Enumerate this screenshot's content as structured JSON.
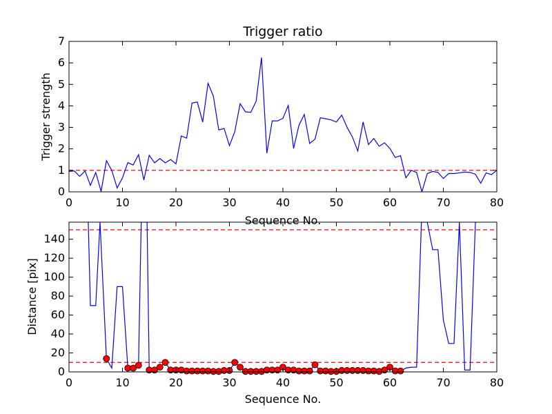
{
  "chart_data": [
    {
      "type": "line",
      "title": "Trigger ratio",
      "xlabel": "Sequence No.",
      "ylabel": "Trigger strength",
      "xlim": [
        0,
        80
      ],
      "ylim": [
        0,
        7
      ],
      "xticks": [
        "0",
        "10",
        "20",
        "30",
        "40",
        "50",
        "60",
        "70",
        "80"
      ],
      "yticks": [
        "0",
        "1",
        "2",
        "3",
        "4",
        "5",
        "6",
        "7"
      ],
      "grid": false,
      "threshold": 1,
      "colors": {
        "line": "#0000ff",
        "threshold": "#ff0000"
      },
      "series": [
        {
          "x": [
            0,
            1,
            2,
            3,
            4,
            5,
            6,
            7,
            8,
            9,
            10,
            11,
            12,
            13,
            14,
            15,
            16,
            17,
            18,
            19,
            20,
            21,
            22,
            23,
            24,
            25,
            26,
            27,
            28,
            29,
            30,
            31,
            32,
            33,
            34,
            35,
            36,
            37,
            38,
            39,
            40,
            41,
            42,
            43,
            44,
            45,
            46,
            47,
            48,
            49,
            50,
            51,
            52,
            53,
            54,
            55,
            56,
            57,
            58,
            59,
            60,
            61,
            62,
            63,
            64,
            65,
            66,
            67,
            68,
            69,
            70,
            71,
            72,
            73,
            74,
            75,
            76,
            77,
            78,
            79,
            80
          ],
          "y": [
            0.95,
            0.97,
            0.72,
            0.97,
            0.3,
            0.9,
            0.02,
            1.45,
            1.0,
            0.18,
            0.65,
            1.36,
            1.25,
            1.73,
            0.55,
            1.7,
            1.35,
            1.55,
            1.35,
            1.5,
            1.3,
            2.6,
            2.5,
            4.13,
            4.18,
            3.25,
            5.05,
            4.45,
            2.88,
            2.95,
            2.15,
            2.8,
            4.1,
            3.72,
            3.7,
            4.22,
            6.25,
            1.8,
            3.3,
            3.3,
            3.42,
            4.02,
            2.02,
            3.1,
            3.6,
            2.25,
            2.45,
            3.45,
            3.4,
            3.35,
            3.25,
            3.57,
            3.0,
            2.55,
            1.9,
            3.25,
            2.2,
            2.48,
            2.12,
            2.28,
            2.02,
            1.6,
            1.68,
            0.65,
            1.0,
            0.9,
            0.0,
            0.85,
            0.95,
            0.9,
            0.62,
            0.85,
            0.85,
            0.88,
            0.92,
            0.9,
            0.82,
            0.4,
            0.88,
            0.8,
            1.0
          ]
        }
      ]
    },
    {
      "type": "line",
      "title": "",
      "xlabel": "Sequence No.",
      "ylabel": "Distance [pix]",
      "xlim": [
        0,
        80
      ],
      "ylim": [
        0,
        158
      ],
      "xticks": [
        "0",
        "10",
        "20",
        "30",
        "40",
        "50",
        "60",
        "70",
        "80"
      ],
      "yticks": [
        "0",
        "20",
        "40",
        "60",
        "80",
        "100",
        "120",
        "140"
      ],
      "grid": false,
      "thresholds": [
        10,
        150
      ],
      "colors": {
        "line": "#0000ff",
        "marker": "#ff0000",
        "threshold": "#ff0000"
      },
      "series": [
        {
          "x": [
            3.6,
            4,
            5,
            5.8,
            7,
            8,
            9,
            10,
            11,
            12,
            13,
            13.5,
            14.6,
            15,
            16,
            17,
            18,
            19,
            20,
            21,
            22,
            23,
            24,
            25,
            26,
            27,
            28,
            29,
            30,
            31,
            32,
            33,
            34,
            35,
            36,
            37,
            38,
            39,
            40,
            41,
            42,
            43,
            44,
            45,
            46,
            47,
            48,
            49,
            50,
            51,
            52,
            53,
            54,
            55,
            56,
            57,
            58,
            59,
            60,
            61,
            62,
            63,
            64,
            65,
            65.9,
            67,
            68,
            69,
            70,
            71,
            72,
            73,
            74,
            75,
            76,
            76.4
          ],
          "y": [
            158,
            70,
            70,
            158,
            14,
            4,
            90,
            90,
            4,
            4,
            7,
            158,
            158,
            2,
            2,
            5,
            10,
            2,
            2,
            2,
            1,
            1,
            1,
            1,
            1,
            0.5,
            0.5,
            1.5,
            1.5,
            10,
            5,
            0.5,
            0.5,
            0.5,
            0.5,
            2,
            2,
            2,
            5,
            2,
            2,
            1,
            1,
            1,
            7.5,
            1,
            1,
            0.5,
            0.5,
            1.5,
            1.5,
            1.5,
            1.5,
            1.5,
            1,
            1,
            0.5,
            2,
            5,
            1,
            1,
            4,
            5,
            5,
            158,
            158,
            129,
            129,
            55,
            30,
            30,
            158,
            2,
            2,
            158,
            158
          ]
        }
      ],
      "markers": {
        "x": [
          7,
          11,
          12,
          13,
          15,
          16,
          17,
          18,
          19,
          20,
          21,
          22,
          23,
          24,
          25,
          26,
          27,
          28,
          29,
          30,
          31,
          32,
          33,
          34,
          35,
          36,
          37,
          38,
          39,
          40,
          41,
          42,
          43,
          44,
          45,
          46,
          47,
          48,
          49,
          50,
          51,
          52,
          53,
          54,
          55,
          56,
          57,
          58,
          59,
          60,
          61,
          62
        ],
        "y": [
          14,
          4,
          4,
          7,
          2,
          2,
          5,
          10,
          2,
          2,
          2,
          1,
          1,
          1,
          1,
          1,
          0.5,
          0.5,
          1.5,
          1.5,
          10,
          5,
          0.5,
          0.5,
          0.5,
          0.5,
          2,
          2,
          2,
          5,
          2,
          2,
          1,
          1,
          1,
          7.5,
          1,
          1,
          0.5,
          0.5,
          1.5,
          1.5,
          1.5,
          1.5,
          1.5,
          1,
          1,
          0.5,
          2,
          5,
          1,
          1
        ]
      }
    }
  ]
}
